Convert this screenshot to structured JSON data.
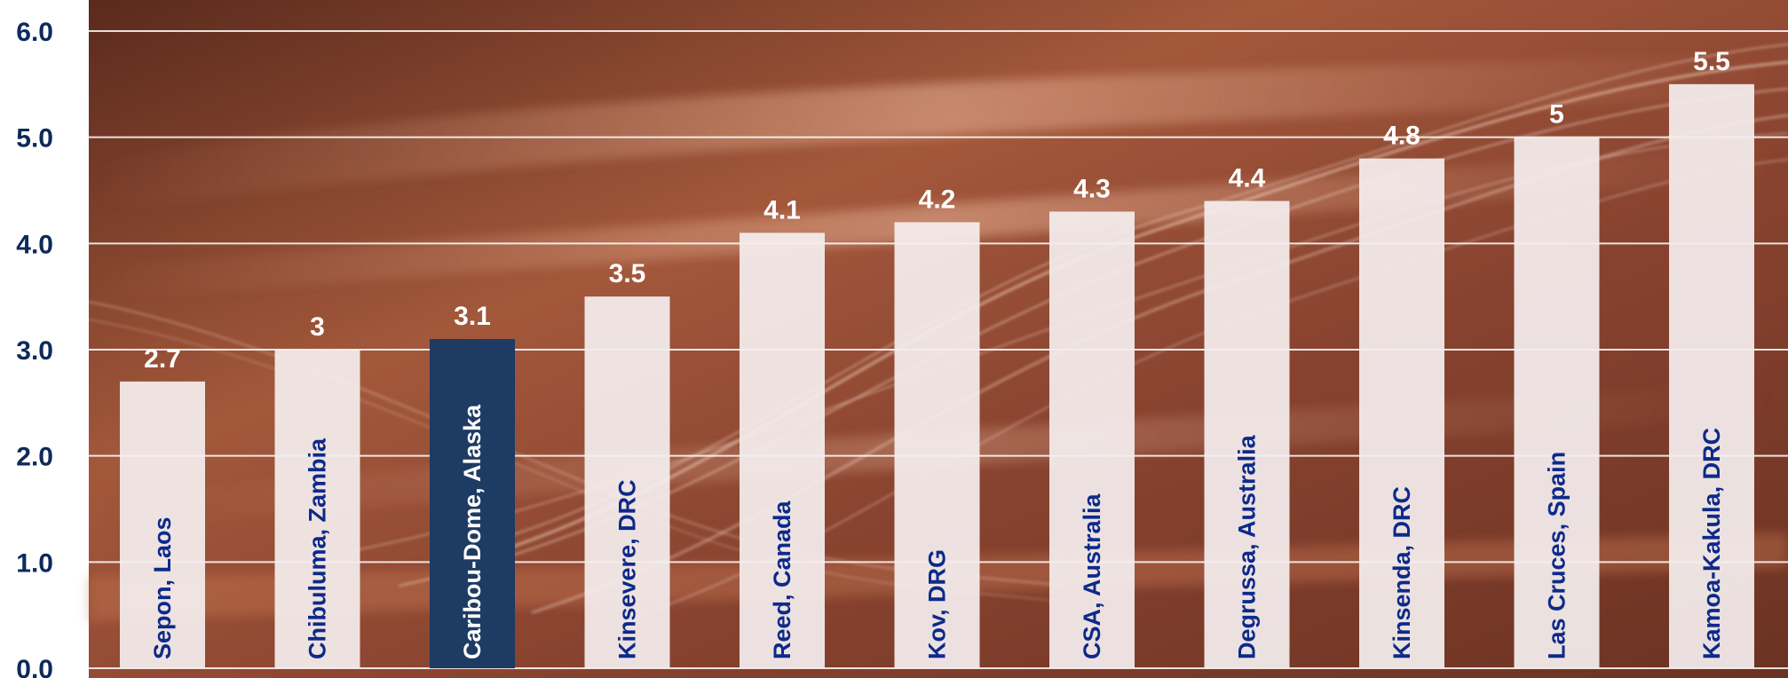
{
  "chart_data": {
    "type": "bar",
    "categories": [
      "Sepon, Laos",
      "Chibuluma, Zambia",
      "Caribou-Dome, Alaska",
      "Kinsevere, DRC",
      "Reed, Canada",
      "Kov, DRG",
      "CSA, Australia",
      "Degrussa, Australia",
      "Kinsenda, DRC",
      "Las Cruces, Spain",
      "Kamoa-Kakula, DRC"
    ],
    "values": [
      2.7,
      3,
      3.1,
      3.5,
      4.1,
      4.2,
      4.3,
      4.4,
      4.8,
      5,
      5.5
    ],
    "value_labels": [
      "2.7",
      "3",
      "3.1",
      "3.5",
      "4.1",
      "4.2",
      "4.3",
      "4.4",
      "4.8",
      "5",
      "5.5"
    ],
    "highlight_index": 2,
    "yticks": [
      "0.0",
      "1.0",
      "2.0",
      "3.0",
      "4.0",
      "5.0",
      "6.0"
    ],
    "ylim": [
      0,
      6
    ],
    "grid": true,
    "title": "",
    "xlabel": "",
    "ylabel": "",
    "colors": {
      "bar": "#f4eeee",
      "highlight_bar": "#1d3b63",
      "category_text": "#0d2a8a",
      "highlight_text": "#ffffff",
      "axis_text": "#0d2a5a",
      "gridline": "#ffffff"
    }
  }
}
